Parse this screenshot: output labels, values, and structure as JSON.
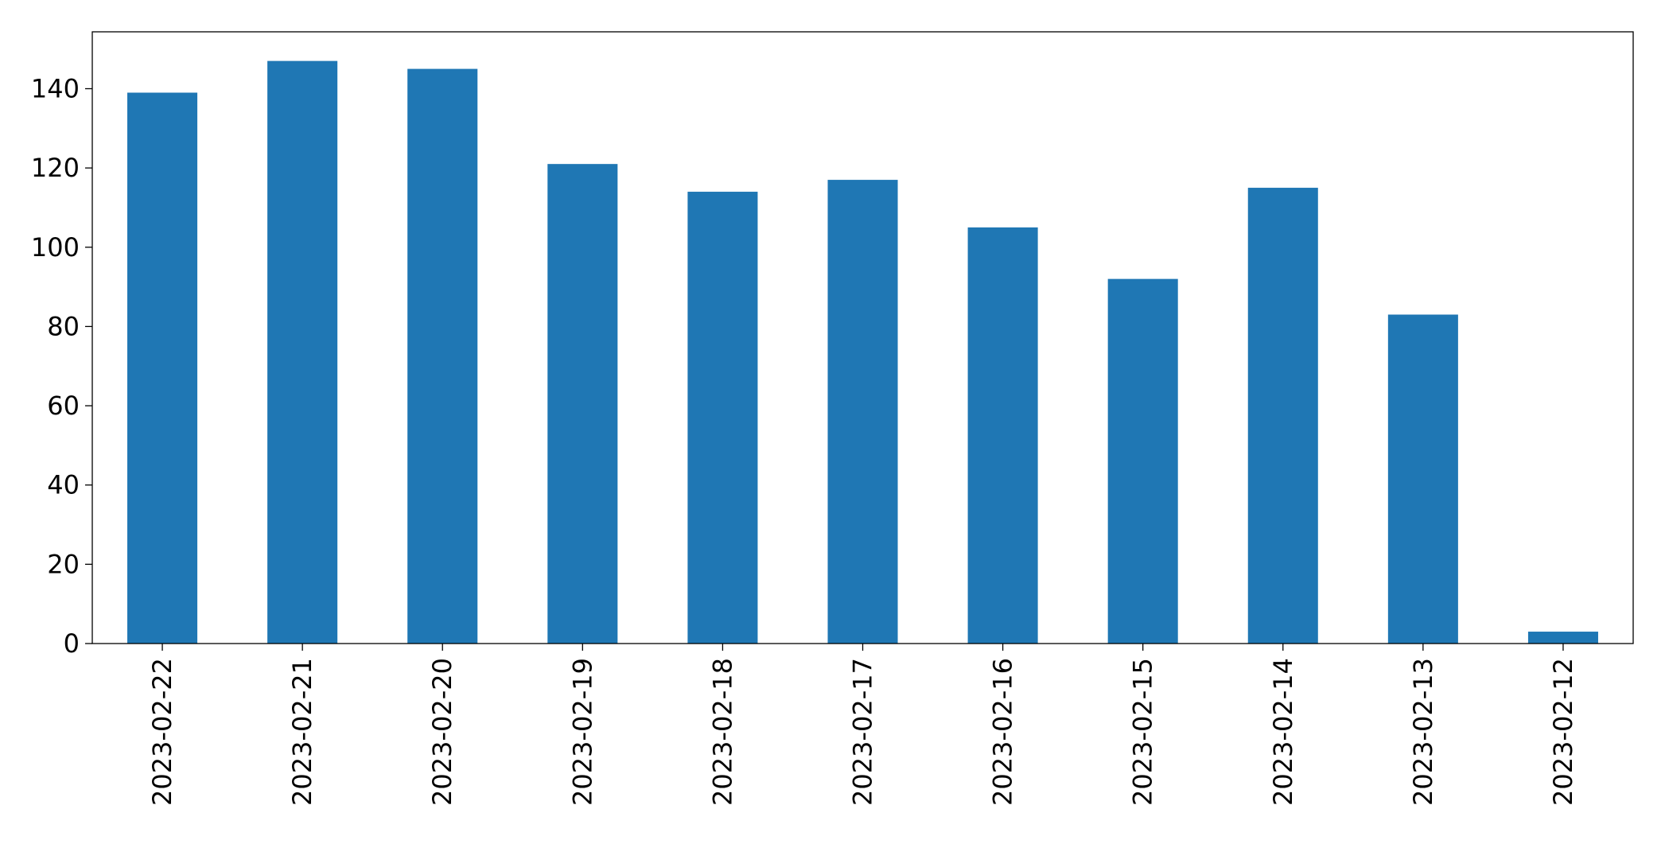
{
  "chart_data": {
    "type": "bar",
    "categories": [
      "2023-02-22",
      "2023-02-21",
      "2023-02-20",
      "2023-02-19",
      "2023-02-18",
      "2023-02-17",
      "2023-02-16",
      "2023-02-15",
      "2023-02-14",
      "2023-02-13",
      "2023-02-12"
    ],
    "values": [
      139,
      147,
      145,
      121,
      114,
      117,
      105,
      92,
      115,
      83,
      3
    ],
    "color": "#1f77b4",
    "ylim": [
      0,
      154.35
    ],
    "yticks": [
      0,
      20,
      40,
      60,
      80,
      100,
      120,
      140
    ],
    "grid": false
  }
}
